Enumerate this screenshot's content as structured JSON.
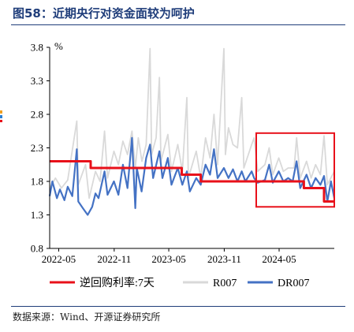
{
  "header": {
    "title": "图58：近期央行对资金面较为呵护"
  },
  "footer": {
    "source": "数据来源：Wind、开源证券研究所"
  },
  "colors": {
    "title": "#1f3d7a",
    "policy_rate": "#e8101a",
    "r007": "#d9d9d9",
    "dr007": "#4472c4",
    "highlight_box": "#e8101a"
  },
  "chart_data": {
    "type": "line",
    "y_unit": "%",
    "ylim": [
      0.8,
      3.8
    ],
    "y_ticks": [
      "0.8",
      "1.3",
      "1.8",
      "2.3",
      "2.8",
      "3.3",
      "3.8"
    ],
    "x_tick_labels": [
      "2022-05",
      "2022-11",
      "2023-05",
      "2023-11",
      "2024-05"
    ],
    "x_range": [
      "2022-04-01",
      "2024-10-31"
    ],
    "grid": false,
    "legend_position": "bottom",
    "highlight_box": {
      "x_range": [
        "2024-02-15",
        "2024-10-31"
      ],
      "y_range": [
        1.42,
        2.52
      ],
      "color": "#e8101a"
    },
    "series": [
      {
        "name": "逆回购利率:7天",
        "color": "#e8101a",
        "style": "step",
        "points": [
          [
            "2022-04-01",
            2.1
          ],
          [
            "2022-08-15",
            2.1
          ],
          [
            "2022-08-15",
            2.0
          ],
          [
            "2023-06-13",
            2.0
          ],
          [
            "2023-06-13",
            1.9
          ],
          [
            "2023-08-15",
            1.9
          ],
          [
            "2023-08-15",
            1.8
          ],
          [
            "2024-07-22",
            1.8
          ],
          [
            "2024-07-22",
            1.7
          ],
          [
            "2024-09-27",
            1.7
          ],
          [
            "2024-09-27",
            1.5
          ],
          [
            "2024-10-31",
            1.5
          ]
        ]
      },
      {
        "name": "R007",
        "color": "#d9d9d9",
        "style": "line",
        "points": [
          [
            "2022-04-01",
            1.7
          ],
          [
            "2022-04-20",
            1.85
          ],
          [
            "2022-05-10",
            1.7
          ],
          [
            "2022-05-31",
            1.82
          ],
          [
            "2022-06-30",
            2.7
          ],
          [
            "2022-07-05",
            1.75
          ],
          [
            "2022-07-29",
            2.05
          ],
          [
            "2022-08-10",
            1.55
          ],
          [
            "2022-08-31",
            1.95
          ],
          [
            "2022-09-15",
            1.8
          ],
          [
            "2022-09-30",
            2.55
          ],
          [
            "2022-10-10",
            1.85
          ],
          [
            "2022-10-31",
            2.25
          ],
          [
            "2022-11-15",
            2.05
          ],
          [
            "2022-11-30",
            2.4
          ],
          [
            "2022-12-15",
            2.2
          ],
          [
            "2022-12-30",
            2.55
          ],
          [
            "2023-01-10",
            2.0
          ],
          [
            "2023-01-20",
            2.45
          ],
          [
            "2023-02-01",
            2.1
          ],
          [
            "2023-02-15",
            2.35
          ],
          [
            "2023-02-28",
            3.78
          ],
          [
            "2023-03-05",
            2.2
          ],
          [
            "2023-03-20",
            2.45
          ],
          [
            "2023-03-31",
            3.35
          ],
          [
            "2023-04-05",
            2.1
          ],
          [
            "2023-04-28",
            2.5
          ],
          [
            "2023-05-10",
            1.95
          ],
          [
            "2023-05-31",
            2.35
          ],
          [
            "2023-06-15",
            1.95
          ],
          [
            "2023-06-30",
            3.05
          ],
          [
            "2023-07-05",
            1.85
          ],
          [
            "2023-07-31",
            2.25
          ],
          [
            "2023-08-15",
            1.85
          ],
          [
            "2023-08-31",
            2.45
          ],
          [
            "2023-09-15",
            2.15
          ],
          [
            "2023-09-28",
            2.8
          ],
          [
            "2023-10-10",
            2.05
          ],
          [
            "2023-10-31",
            3.78
          ],
          [
            "2023-11-05",
            2.2
          ],
          [
            "2023-11-15",
            2.6
          ],
          [
            "2023-11-30",
            2.35
          ],
          [
            "2023-12-15",
            2.3
          ],
          [
            "2023-12-29",
            3.05
          ],
          [
            "2024-01-05",
            2.0
          ],
          [
            "2024-01-31",
            2.35
          ],
          [
            "2024-02-08",
            2.45
          ],
          [
            "2024-02-20",
            1.95
          ],
          [
            "2024-03-15",
            2.05
          ],
          [
            "2024-03-29",
            2.3
          ],
          [
            "2024-04-10",
            1.9
          ],
          [
            "2024-04-30",
            2.15
          ],
          [
            "2024-05-15",
            1.95
          ],
          [
            "2024-05-31",
            2.0
          ],
          [
            "2024-06-20",
            2.0
          ],
          [
            "2024-06-28",
            2.45
          ],
          [
            "2024-07-10",
            1.85
          ],
          [
            "2024-07-31",
            2.1
          ],
          [
            "2024-08-15",
            1.85
          ],
          [
            "2024-08-30",
            2.05
          ],
          [
            "2024-09-15",
            1.9
          ],
          [
            "2024-09-27",
            2.48
          ],
          [
            "2024-10-08",
            1.75
          ],
          [
            "2024-10-31",
            1.95
          ]
        ]
      },
      {
        "name": "DR007",
        "color": "#4472c4",
        "style": "line",
        "points": [
          [
            "2022-04-01",
            1.58
          ],
          [
            "2022-04-10",
            1.8
          ],
          [
            "2022-04-25",
            1.55
          ],
          [
            "2022-05-05",
            1.68
          ],
          [
            "2022-05-20",
            1.52
          ],
          [
            "2022-05-31",
            1.72
          ],
          [
            "2022-06-15",
            1.58
          ],
          [
            "2022-06-30",
            2.28
          ],
          [
            "2022-07-05",
            1.5
          ],
          [
            "2022-07-20",
            1.4
          ],
          [
            "2022-08-05",
            1.3
          ],
          [
            "2022-08-20",
            1.42
          ],
          [
            "2022-08-31",
            1.62
          ],
          [
            "2022-09-10",
            1.55
          ],
          [
            "2022-09-30",
            1.95
          ],
          [
            "2022-10-10",
            1.6
          ],
          [
            "2022-10-31",
            1.8
          ],
          [
            "2022-11-15",
            1.6
          ],
          [
            "2022-11-30",
            2.05
          ],
          [
            "2022-12-15",
            1.7
          ],
          [
            "2022-12-30",
            2.45
          ],
          [
            "2023-01-10",
            1.4
          ],
          [
            "2023-01-15",
            2.0
          ],
          [
            "2023-01-31",
            1.65
          ],
          [
            "2023-02-15",
            2.15
          ],
          [
            "2023-02-28",
            2.35
          ],
          [
            "2023-03-10",
            1.85
          ],
          [
            "2023-03-31",
            2.25
          ],
          [
            "2023-04-10",
            1.85
          ],
          [
            "2023-04-28",
            2.15
          ],
          [
            "2023-05-10",
            1.75
          ],
          [
            "2023-05-31",
            2.0
          ],
          [
            "2023-06-15",
            1.75
          ],
          [
            "2023-06-30",
            1.95
          ],
          [
            "2023-07-10",
            1.65
          ],
          [
            "2023-07-31",
            1.85
          ],
          [
            "2023-08-15",
            1.75
          ],
          [
            "2023-08-31",
            2.05
          ],
          [
            "2023-09-15",
            1.9
          ],
          [
            "2023-09-28",
            2.28
          ],
          [
            "2023-10-10",
            1.85
          ],
          [
            "2023-10-31",
            2.0
          ],
          [
            "2023-11-15",
            1.85
          ],
          [
            "2023-11-30",
            1.98
          ],
          [
            "2023-12-15",
            1.8
          ],
          [
            "2023-12-29",
            1.95
          ],
          [
            "2024-01-10",
            1.8
          ],
          [
            "2024-01-31",
            1.95
          ],
          [
            "2024-02-08",
            1.85
          ],
          [
            "2024-02-20",
            1.78
          ],
          [
            "2024-03-15",
            1.82
          ],
          [
            "2024-03-29",
            2.05
          ],
          [
            "2024-04-10",
            1.78
          ],
          [
            "2024-04-30",
            1.95
          ],
          [
            "2024-05-15",
            1.8
          ],
          [
            "2024-05-31",
            1.85
          ],
          [
            "2024-06-15",
            1.8
          ],
          [
            "2024-06-28",
            2.1
          ],
          [
            "2024-07-10",
            1.7
          ],
          [
            "2024-07-31",
            1.9
          ],
          [
            "2024-08-15",
            1.7
          ],
          [
            "2024-08-30",
            1.85
          ],
          [
            "2024-09-15",
            1.75
          ],
          [
            "2024-09-27",
            1.88
          ],
          [
            "2024-10-08",
            1.5
          ],
          [
            "2024-10-20",
            1.8
          ],
          [
            "2024-10-31",
            1.55
          ]
        ]
      }
    ]
  }
}
